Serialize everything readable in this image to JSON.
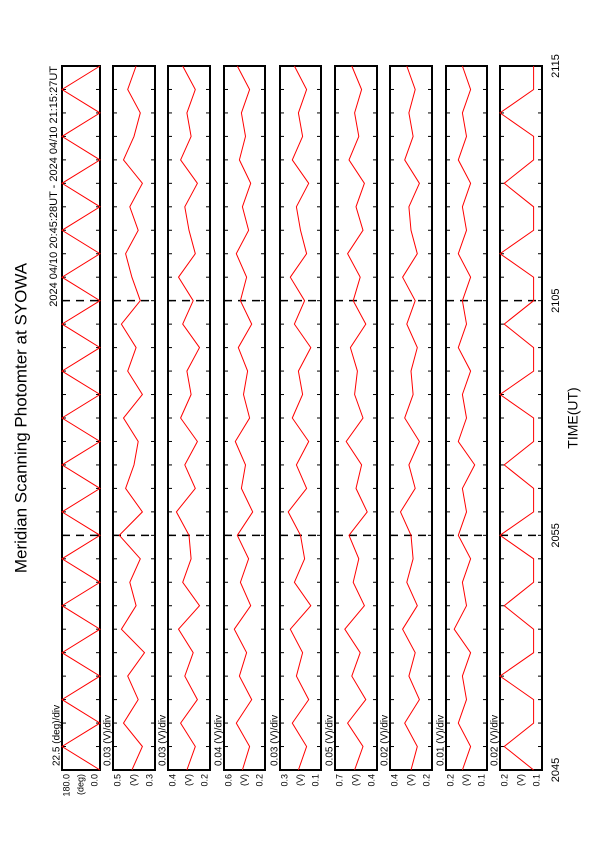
{
  "chart_data": {
    "type": "line",
    "title": "Meridian Scanning Photomter at SYOWA",
    "subtitle": "2024 04/10 20:45:28UT - 2024 04/10 21:15:27UT",
    "xlabel": "TIME(UT)",
    "xlim": [
      0,
      30
    ],
    "xticks": [
      {
        "value": 0,
        "label": "2045"
      },
      {
        "value": 10,
        "label": "2055"
      },
      {
        "value": 20,
        "label": "2105"
      },
      {
        "value": 30,
        "label": "2115"
      }
    ],
    "x": [
      0,
      1,
      2,
      3,
      4,
      5,
      6,
      7,
      8,
      9,
      10,
      11,
      12,
      13,
      14,
      15,
      16,
      17,
      18,
      19,
      20,
      21,
      22,
      23,
      24,
      25,
      26,
      27,
      28,
      29,
      30
    ],
    "panels": [
      {
        "scale_label": "22.5 (deg)/div",
        "unit": "(deg)",
        "color": "#ff0000",
        "ylim": [
          0,
          180
        ],
        "yticks": [
          {
            "value": 0,
            "label": "0.0"
          },
          {
            "value": 180,
            "label": "180.0"
          }
        ],
        "values": [
          0,
          180,
          0,
          180,
          0,
          180,
          0,
          180,
          0,
          180,
          0,
          180,
          0,
          180,
          0,
          180,
          0,
          180,
          0,
          180,
          0,
          180,
          0,
          180,
          0,
          180,
          0,
          180,
          0,
          180,
          0
        ]
      },
      {
        "scale_label": "0.03 (V)/div",
        "unit": "(V)",
        "color": "#ff0000",
        "ylim": [
          0.3,
          0.5
        ],
        "yticks": [
          0.3,
          0.5
        ],
        "values": [
          0.41,
          0.36,
          0.45,
          0.38,
          0.43,
          0.35,
          0.46,
          0.39,
          0.42,
          0.37,
          0.47,
          0.36,
          0.44,
          0.4,
          0.38,
          0.45,
          0.36,
          0.43,
          0.39,
          0.46,
          0.37,
          0.41,
          0.44,
          0.38,
          0.42,
          0.36,
          0.45,
          0.4,
          0.37,
          0.43,
          0.39
        ]
      },
      {
        "scale_label": "0.03 (V)/div",
        "unit": "(V)",
        "color": "#ff0000",
        "ylim": [
          0.2,
          0.4
        ],
        "yticks": [
          0.2,
          0.4
        ],
        "values": [
          0.31,
          0.27,
          0.34,
          0.26,
          0.32,
          0.28,
          0.35,
          0.25,
          0.33,
          0.29,
          0.3,
          0.36,
          0.27,
          0.32,
          0.26,
          0.34,
          0.29,
          0.31,
          0.25,
          0.33,
          0.28,
          0.35,
          0.27,
          0.3,
          0.32,
          0.26,
          0.34,
          0.29,
          0.31,
          0.27,
          0.33
        ]
      },
      {
        "scale_label": "0.04 (V)/div",
        "unit": "(V)",
        "color": "#ff0000",
        "ylim": [
          0.2,
          0.6
        ],
        "yticks": [
          0.2,
          0.6
        ],
        "values": [
          0.42,
          0.35,
          0.48,
          0.33,
          0.45,
          0.38,
          0.5,
          0.34,
          0.44,
          0.36,
          0.47,
          0.32,
          0.43,
          0.39,
          0.49,
          0.35,
          0.41,
          0.37,
          0.46,
          0.33,
          0.44,
          0.38,
          0.48,
          0.36,
          0.42,
          0.34,
          0.45,
          0.39,
          0.43,
          0.35,
          0.47
        ]
      },
      {
        "scale_label": "0.03 (V)/div",
        "unit": "(V)",
        "color": "#ff0000",
        "ylim": [
          0.1,
          0.3
        ],
        "yticks": [
          0.1,
          0.3
        ],
        "values": [
          0.21,
          0.17,
          0.24,
          0.16,
          0.22,
          0.19,
          0.25,
          0.15,
          0.23,
          0.18,
          0.2,
          0.26,
          0.17,
          0.22,
          0.16,
          0.24,
          0.19,
          0.21,
          0.15,
          0.23,
          0.18,
          0.25,
          0.17,
          0.2,
          0.22,
          0.16,
          0.24,
          0.19,
          0.21,
          0.17,
          0.23
        ]
      },
      {
        "scale_label": "0.05 (V)/div",
        "unit": "(V)",
        "color": "#ff0000",
        "ylim": [
          0.4,
          0.7
        ],
        "yticks": [
          0.4,
          0.7
        ],
        "values": [
          0.56,
          0.5,
          0.61,
          0.48,
          0.58,
          0.52,
          0.63,
          0.49,
          0.57,
          0.53,
          0.6,
          0.47,
          0.55,
          0.51,
          0.62,
          0.5,
          0.56,
          0.54,
          0.59,
          0.48,
          0.57,
          0.52,
          0.61,
          0.5,
          0.55,
          0.49,
          0.6,
          0.53,
          0.56,
          0.51,
          0.58
        ]
      },
      {
        "scale_label": "0.02 (V)/div",
        "unit": "(V)",
        "color": "#ff0000",
        "ylim": [
          0.2,
          0.4
        ],
        "yticks": [
          0.2,
          0.4
        ],
        "values": [
          0.3,
          0.27,
          0.33,
          0.26,
          0.31,
          0.28,
          0.34,
          0.27,
          0.32,
          0.29,
          0.3,
          0.35,
          0.28,
          0.31,
          0.26,
          0.33,
          0.29,
          0.3,
          0.27,
          0.32,
          0.28,
          0.34,
          0.27,
          0.3,
          0.31,
          0.26,
          0.33,
          0.29,
          0.31,
          0.28,
          0.32
        ]
      },
      {
        "scale_label": "0.01 (V)/div",
        "unit": "(V)",
        "color": "#ff0000",
        "ylim": [
          0.1,
          0.2
        ],
        "yticks": [
          0.1,
          0.2
        ],
        "values": [
          0.16,
          0.14,
          0.17,
          0.15,
          0.16,
          0.14,
          0.18,
          0.15,
          0.16,
          0.14,
          0.17,
          0.15,
          0.16,
          0.13,
          0.17,
          0.15,
          0.16,
          0.14,
          0.17,
          0.15,
          0.16,
          0.14,
          0.17,
          0.15,
          0.16,
          0.14,
          0.17,
          0.15,
          0.16,
          0.14,
          0.16
        ]
      },
      {
        "scale_label": "0.02 (V)/div",
        "unit": "(V)",
        "color": "#ff0000",
        "ylim": [
          0.1,
          0.2
        ],
        "yticks": [
          0.1,
          0.2
        ],
        "values": [
          0.12,
          0.19,
          0.12,
          0.12,
          0.2,
          0.12,
          0.12,
          0.19,
          0.12,
          0.12,
          0.2,
          0.12,
          0.12,
          0.19,
          0.12,
          0.12,
          0.2,
          0.12,
          0.12,
          0.19,
          0.12,
          0.12,
          0.2,
          0.12,
          0.12,
          0.19,
          0.12,
          0.12,
          0.2,
          0.12,
          0.12
        ]
      }
    ]
  }
}
